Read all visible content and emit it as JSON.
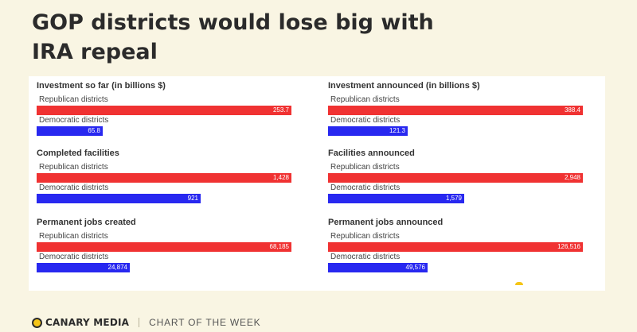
{
  "header": {
    "title": "GOP districts would lose big with IRA repeal"
  },
  "footer": {
    "brand": "CANARY MEDIA",
    "tagline": "CHART OF THE WEEK"
  },
  "colors": {
    "republican": "#f03232",
    "democratic": "#2828f0",
    "background": "#f9f5e3"
  },
  "chart_data": [
    {
      "type": "bar",
      "title": "Investment so far (in billions $)",
      "categories": [
        "Republican districts",
        "Democratic districts"
      ],
      "values": [
        253.7,
        65.8
      ],
      "value_labels": [
        "253.7",
        "65.8"
      ]
    },
    {
      "type": "bar",
      "title": "Investment announced (in billions $)",
      "categories": [
        "Republican districts",
        "Democratic districts"
      ],
      "values": [
        388.4,
        121.3
      ],
      "value_labels": [
        "388.4",
        "121.3"
      ]
    },
    {
      "type": "bar",
      "title": "Completed facilities",
      "categories": [
        "Republican districts",
        "Democratic districts"
      ],
      "values": [
        1428,
        921
      ],
      "value_labels": [
        "1,428",
        "921"
      ]
    },
    {
      "type": "bar",
      "title": "Facilities announced",
      "categories": [
        "Republican districts",
        "Democratic districts"
      ],
      "values": [
        2948,
        1579
      ],
      "value_labels": [
        "2,948",
        "1,579"
      ]
    },
    {
      "type": "bar",
      "title": "Permanent jobs created",
      "categories": [
        "Republican districts",
        "Democratic districts"
      ],
      "values": [
        68185,
        24874
      ],
      "value_labels": [
        "68,185",
        "24,874"
      ]
    },
    {
      "type": "bar",
      "title": "Permanent jobs announced",
      "categories": [
        "Republican districts",
        "Democratic districts"
      ],
      "values": [
        126516,
        49576
      ],
      "value_labels": [
        "126,516",
        "49,576"
      ]
    }
  ]
}
